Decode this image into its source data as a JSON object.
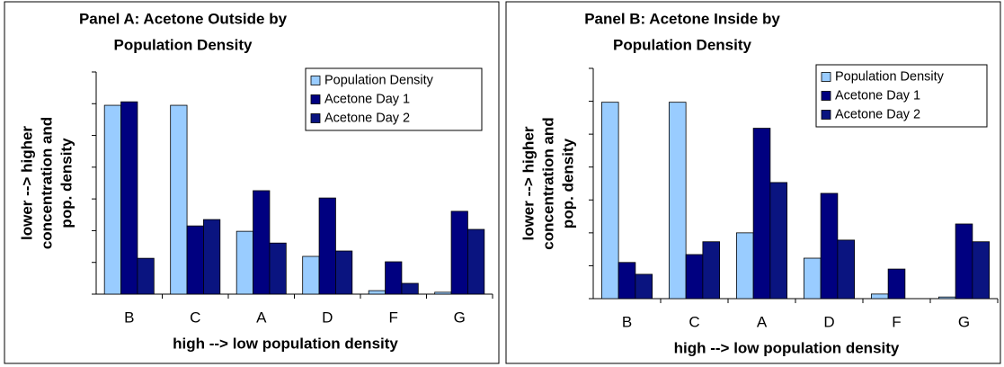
{
  "chart_data": [
    {
      "type": "bar",
      "title": "Panel A:  Acetone Outside by",
      "subtitle": "Population Density",
      "xlabel": "high --> low population density",
      "ylabel": "lower --> higher",
      "ylabel2": "concentration and",
      "ylabel3": "pop. density",
      "categories": [
        "B",
        "C",
        "A",
        "D",
        "F",
        "G"
      ],
      "series": [
        {
          "name": "Population Density",
          "color": "#99ccff",
          "values": [
            5.95,
            5.95,
            1.98,
            1.19,
            0.11,
            0.06
          ]
        },
        {
          "name": "Acetone Day 1",
          "color": "#000080",
          "values": [
            6.06,
            2.15,
            3.26,
            3.03,
            1.02,
            2.61
          ]
        },
        {
          "name": "Acetone Day 2",
          "color": "#0a1480",
          "values": [
            1.13,
            2.35,
            1.61,
            1.36,
            0.34,
            2.04
          ]
        }
      ],
      "ylim": [
        0,
        7
      ],
      "yticks": [
        0,
        1,
        2,
        3,
        4,
        5,
        6,
        7
      ],
      "grid": false,
      "legend": "upper right"
    },
    {
      "type": "bar",
      "title": "Panel B:  Acetone Inside by",
      "subtitle": "Population Density",
      "xlabel": "high --> low population density",
      "ylabel": "lower --> higher",
      "ylabel2": "concentration and",
      "ylabel3": "pop. density",
      "categories": [
        "B",
        "C",
        "A",
        "D",
        "F",
        "G"
      ],
      "series": [
        {
          "name": "Population Density",
          "color": "#99ccff",
          "values": [
            5.97,
            5.97,
            2.0,
            1.23,
            0.14,
            0.05
          ]
        },
        {
          "name": "Acetone Day 1",
          "color": "#000080",
          "values": [
            1.1,
            1.34,
            5.18,
            3.2,
            0.9,
            2.27
          ]
        },
        {
          "name": "Acetone Day 2",
          "color": "#0a1480",
          "values": [
            0.74,
            1.73,
            3.53,
            1.78,
            0,
            1.73
          ]
        }
      ],
      "ylim": [
        0,
        7
      ],
      "yticks": [
        0,
        1,
        2,
        3,
        4,
        5,
        6,
        7
      ],
      "grid": false,
      "legend": "upper right"
    }
  ]
}
